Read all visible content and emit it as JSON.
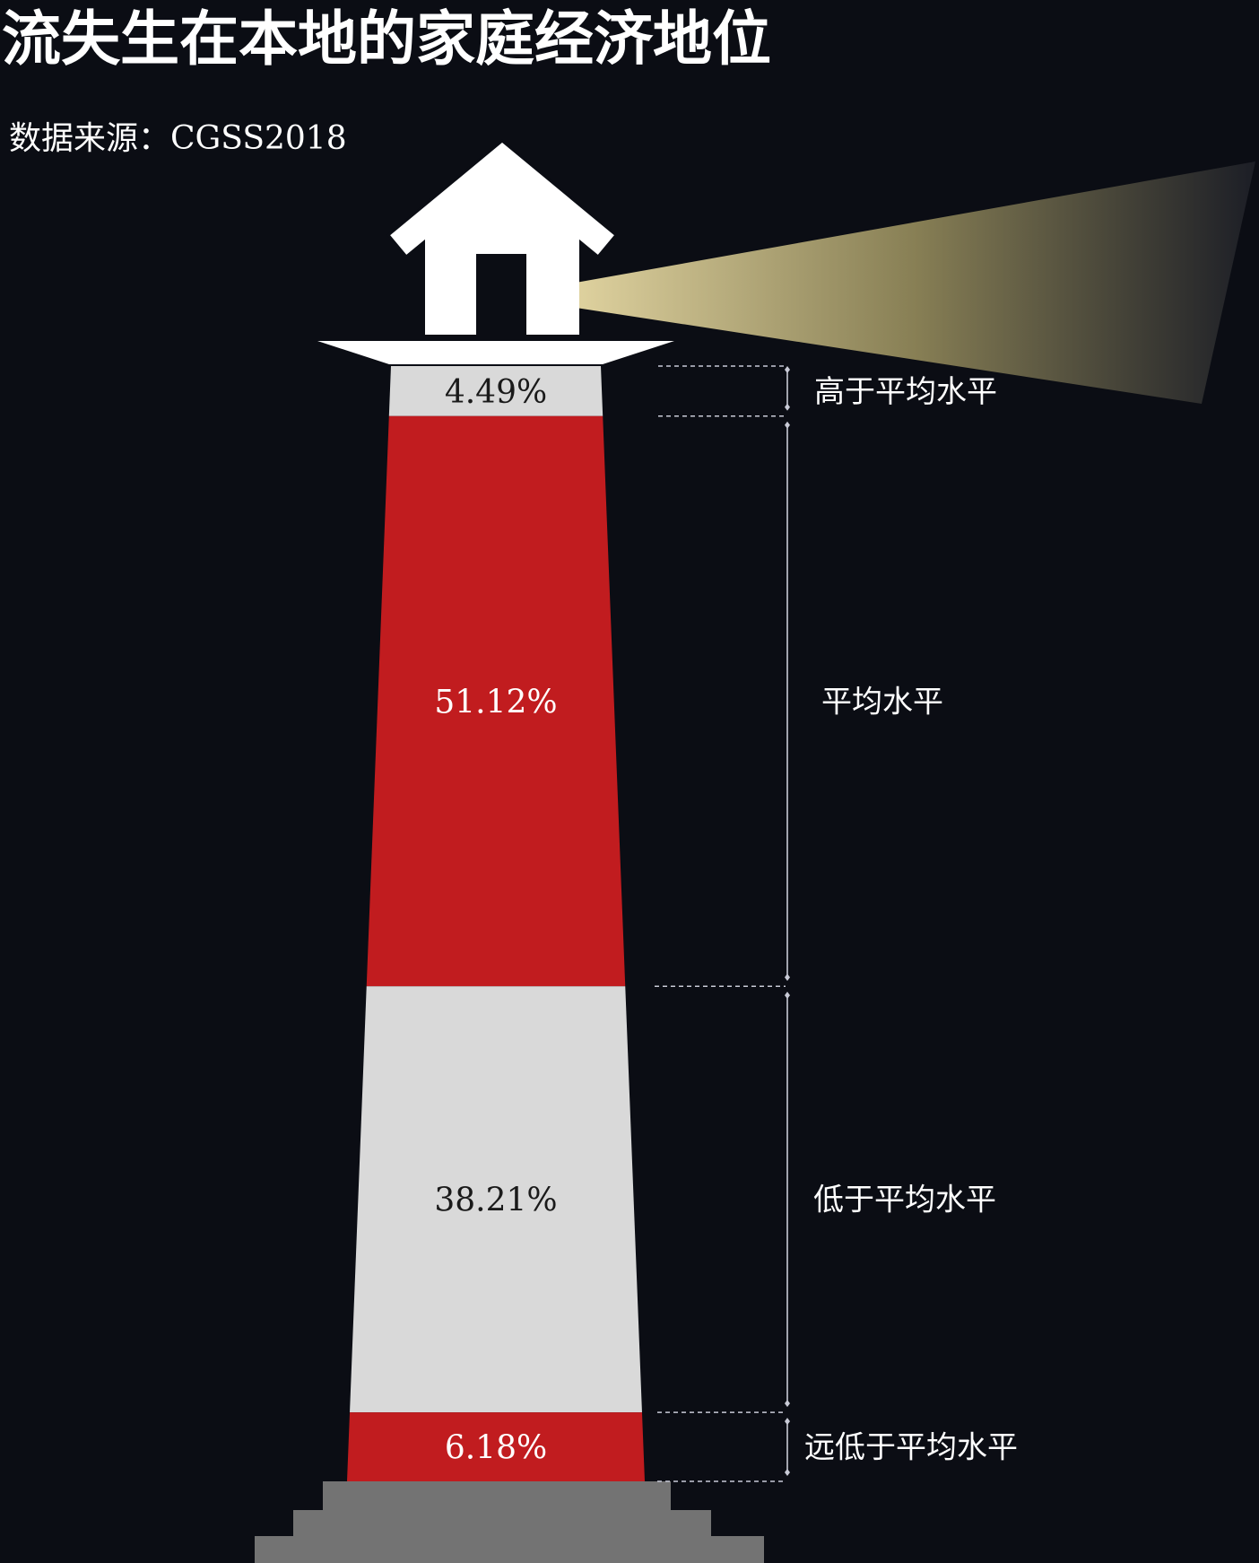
{
  "chart_data": {
    "type": "bar",
    "title": "流失生在本地的家庭经济地位",
    "source": "数据来源：CGSS2018",
    "unit": "%",
    "categories": [
      "高于平均水平",
      "平均水平",
      "低于平均水平",
      "远低于平均水平"
    ],
    "values": [
      4.49,
      51.12,
      38.21,
      6.18
    ],
    "labels": [
      "4.49%",
      "51.12%",
      "38.21%",
      "6.18%"
    ],
    "colors": [
      "#d9d9d9",
      "#c11c1f",
      "#d9d9d9",
      "#c11c1f"
    ],
    "label_colors": [
      "#1a1a1a",
      "#ffffff",
      "#1a1a1a",
      "#ffffff"
    ],
    "stacking": "vertical",
    "grid": false,
    "legend": "none"
  },
  "decor": {
    "background": "#0b0d14",
    "house_icon": "house-icon",
    "beam_color": "#f3e5b0",
    "base_color": "#737373",
    "guide_color": "#c8cad6"
  }
}
